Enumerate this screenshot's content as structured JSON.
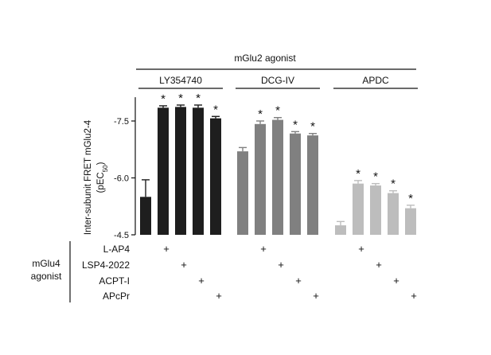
{
  "chart_data": {
    "type": "bar",
    "ylabel_line1": "Inter-subunit FRET mGlu2-4",
    "ylabel_line2_main": "(pEC",
    "ylabel_line2_sub": "50",
    "ylabel_line2_end": ")",
    "y_axis_display": "negated",
    "ylim": [
      -4.5,
      -8.0
    ],
    "yticks": [
      -4.5,
      -6.0,
      -7.5
    ],
    "ytick_labels": [
      "-4.5",
      "-6.0",
      "-7.5"
    ],
    "top_header": "mGlu2 agonist",
    "side_header_line1": "mGlu4",
    "side_header_line2": "agonist",
    "groups": [
      {
        "name": "LY354740",
        "color": "#1e1e1e",
        "values": [
          -5.5,
          -7.85,
          -7.87,
          -7.85,
          -7.57
        ],
        "errors": [
          0.45,
          0.05,
          0.05,
          0.07,
          0.05
        ],
        "significant": [
          false,
          true,
          true,
          true,
          true
        ]
      },
      {
        "name": "DCG-IV",
        "color": "#808080",
        "values": [
          -6.7,
          -7.42,
          -7.53,
          -7.17,
          -7.12
        ],
        "errors": [
          0.1,
          0.08,
          0.06,
          0.05,
          0.05
        ],
        "significant": [
          false,
          true,
          true,
          true,
          true
        ]
      },
      {
        "name": "APDC",
        "color": "#bdbdbd",
        "values": [
          -4.75,
          -5.85,
          -5.8,
          -5.6,
          -5.2
        ],
        "errors": [
          0.1,
          0.08,
          0.05,
          0.06,
          0.08
        ],
        "significant": [
          false,
          true,
          true,
          true,
          true
        ]
      }
    ],
    "condition_labels": [
      "L-AP4",
      "LSP4-2022",
      "ACPT-I",
      "APcPr"
    ],
    "condition_pattern": [
      [
        false,
        true,
        false,
        false,
        false
      ],
      [
        false,
        false,
        true,
        false,
        false
      ],
      [
        false,
        false,
        false,
        true,
        false
      ],
      [
        false,
        false,
        false,
        false,
        true
      ]
    ],
    "significance_marker": "*",
    "plus_marker": "+",
    "grid": false,
    "legend": "none"
  }
}
